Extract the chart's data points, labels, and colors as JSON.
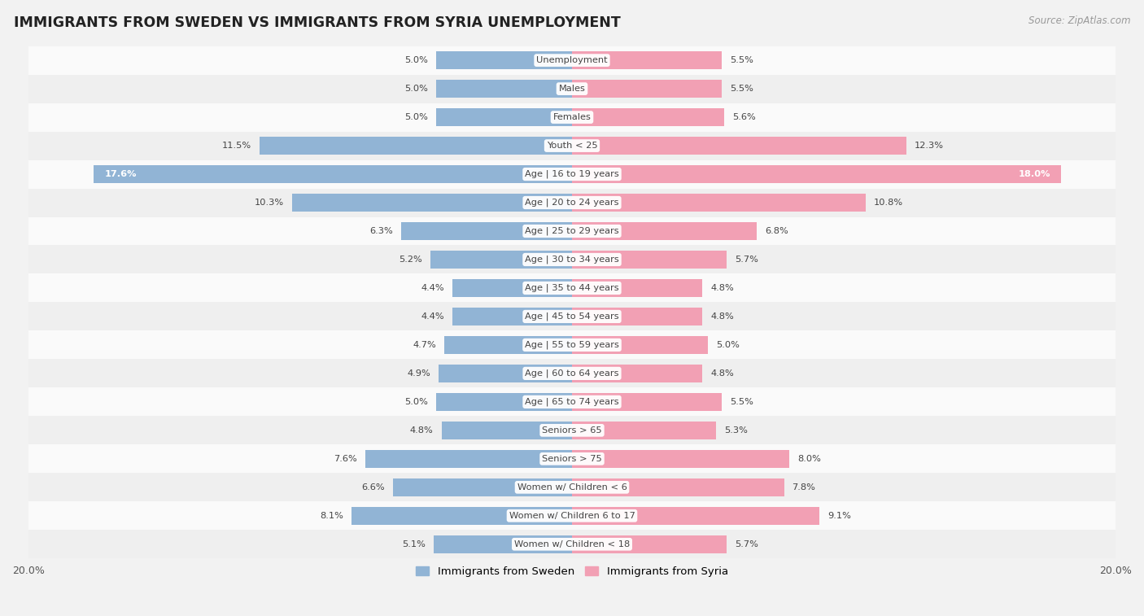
{
  "title": "IMMIGRANTS FROM SWEDEN VS IMMIGRANTS FROM SYRIA UNEMPLOYMENT",
  "source": "Source: ZipAtlas.com",
  "categories": [
    "Unemployment",
    "Males",
    "Females",
    "Youth < 25",
    "Age | 16 to 19 years",
    "Age | 20 to 24 years",
    "Age | 25 to 29 years",
    "Age | 30 to 34 years",
    "Age | 35 to 44 years",
    "Age | 45 to 54 years",
    "Age | 55 to 59 years",
    "Age | 60 to 64 years",
    "Age | 65 to 74 years",
    "Seniors > 65",
    "Seniors > 75",
    "Women w/ Children < 6",
    "Women w/ Children 6 to 17",
    "Women w/ Children < 18"
  ],
  "sweden_values": [
    5.0,
    5.0,
    5.0,
    11.5,
    17.6,
    10.3,
    6.3,
    5.2,
    4.4,
    4.4,
    4.7,
    4.9,
    5.0,
    4.8,
    7.6,
    6.6,
    8.1,
    5.1
  ],
  "syria_values": [
    5.5,
    5.5,
    5.6,
    12.3,
    18.0,
    10.8,
    6.8,
    5.7,
    4.8,
    4.8,
    5.0,
    4.8,
    5.5,
    5.3,
    8.0,
    7.8,
    9.1,
    5.7
  ],
  "sweden_color": "#91b4d5",
  "syria_color": "#f2a0b4",
  "sweden_label": "Immigrants from Sweden",
  "syria_label": "Immigrants from Syria",
  "xlim": 20.0,
  "background_color": "#f2f2f2",
  "row_colors": [
    "#fafafa",
    "#efefef"
  ]
}
